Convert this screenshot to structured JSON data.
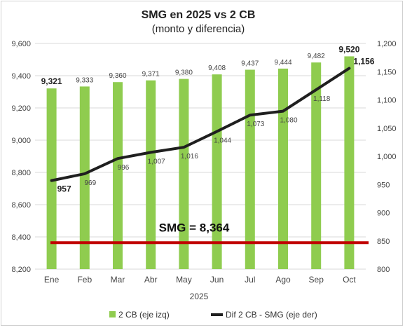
{
  "chart_data": {
    "type": "bar",
    "title": "SMG en 2025 vs 2 CB",
    "subtitle": "(monto y diferencia)",
    "xlabel": "2025",
    "categories": [
      "Ene",
      "Feb",
      "Mar",
      "Abr",
      "May",
      "Jun",
      "Jul",
      "Ago",
      "Sep",
      "Oct"
    ],
    "y_left": {
      "range": [
        8200,
        9600
      ],
      "ticks": [
        "8,200",
        "8,400",
        "8,600",
        "8,800",
        "9,000",
        "9,200",
        "9,400",
        "9,600"
      ]
    },
    "y_right": {
      "range": [
        800,
        1200
      ],
      "ticks": [
        "800",
        "850",
        "900",
        "950",
        "1,000",
        "1,050",
        "1,100",
        "1,150",
        "1,200"
      ]
    },
    "grid": true,
    "legend_position": "bottom",
    "series": [
      {
        "name": "2 CB (eje izq)",
        "type": "bar",
        "axis": "left",
        "color": "#8fcc4f",
        "values": [
          9321,
          9333,
          9360,
          9371,
          9380,
          9408,
          9437,
          9444,
          9482,
          9520
        ],
        "labels": [
          "9,321",
          "9,333",
          "9,360",
          "9,371",
          "9,380",
          "9,408",
          "9,437",
          "9,444",
          "9,482",
          "9,520"
        ],
        "bold_labels": [
          0,
          9
        ]
      },
      {
        "name": "Dif 2 CB - SMG (eje der)",
        "type": "line",
        "axis": "right",
        "color": "#1f1f1f",
        "values": [
          957,
          969,
          996,
          1007,
          1016,
          1044,
          1073,
          1080,
          1118,
          1156
        ],
        "labels": [
          "957",
          "969",
          "996",
          "1,007",
          "1,016",
          "1,044",
          "1,073",
          "1,080",
          "1,118",
          "1,156"
        ],
        "bold_labels": [
          0,
          9
        ]
      }
    ],
    "reference_line": {
      "axis": "left",
      "value": 8364,
      "color": "#c00000",
      "label": "SMG = 8,364"
    }
  }
}
